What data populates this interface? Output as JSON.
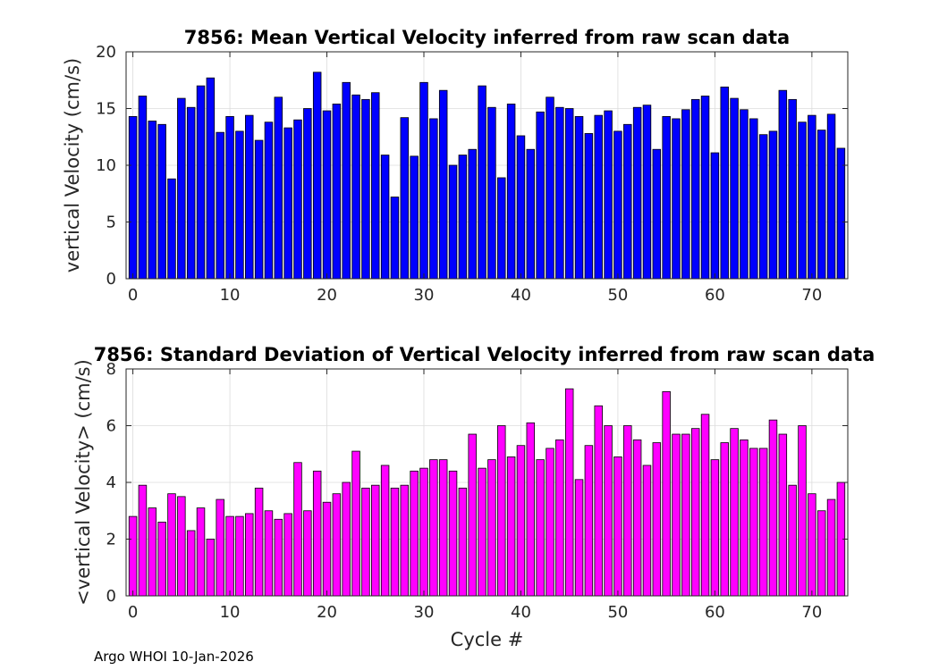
{
  "chart_data": [
    {
      "type": "bar",
      "title": "7856: Mean Vertical Velocity inferred from raw scan data",
      "xlabel": "",
      "ylabel": "vertical Velocity (cm/s)",
      "xlim": [
        -0.7,
        73.7
      ],
      "ylim": [
        0,
        20
      ],
      "xticks": [
        0,
        10,
        20,
        30,
        40,
        50,
        60,
        70
      ],
      "yticks": [
        0,
        5,
        10,
        15,
        20
      ],
      "grid": true,
      "color": "#0000FF",
      "x": [
        0,
        1,
        2,
        3,
        4,
        5,
        6,
        7,
        8,
        9,
        10,
        11,
        12,
        13,
        14,
        15,
        16,
        17,
        18,
        19,
        20,
        21,
        22,
        23,
        24,
        25,
        26,
        27,
        28,
        29,
        30,
        31,
        32,
        33,
        34,
        35,
        36,
        37,
        38,
        39,
        40,
        41,
        42,
        43,
        44,
        45,
        46,
        47,
        48,
        49,
        50,
        51,
        52,
        53,
        54,
        55,
        56,
        57,
        58,
        59,
        60,
        61,
        62,
        63,
        64,
        65,
        66,
        67,
        68,
        69,
        70,
        71,
        72,
        73
      ],
      "values": [
        14.3,
        16.1,
        13.9,
        13.6,
        8.8,
        15.9,
        15.1,
        17.0,
        17.7,
        12.9,
        14.3,
        13.0,
        14.4,
        12.2,
        13.8,
        16.0,
        13.3,
        14.0,
        15.0,
        18.2,
        14.8,
        15.4,
        17.3,
        16.2,
        15.8,
        16.4,
        10.9,
        7.2,
        14.2,
        10.8,
        17.3,
        14.1,
        16.6,
        10.0,
        10.9,
        11.4,
        17.0,
        15.1,
        8.9,
        15.4,
        12.6,
        11.4,
        14.7,
        16.0,
        15.1,
        15.0,
        14.3,
        12.8,
        14.4,
        14.8,
        13.0,
        13.6,
        15.1,
        15.3,
        11.4,
        14.3,
        14.1,
        14.9,
        15.8,
        16.1,
        11.1,
        16.9,
        15.9,
        14.9,
        14.1,
        12.7,
        13.0,
        16.6,
        15.8,
        13.8,
        14.4,
        13.1,
        14.5,
        11.5
      ]
    },
    {
      "type": "bar",
      "title": "7856: Standard Deviation of Vertical Velocity inferred from raw scan data",
      "xlabel": "Cycle #",
      "ylabel": "<vertical Velocity> (cm/s)",
      "xlim": [
        -0.7,
        73.7
      ],
      "ylim": [
        0,
        8
      ],
      "xticks": [
        0,
        10,
        20,
        30,
        40,
        50,
        60,
        70
      ],
      "yticks": [
        0,
        2,
        4,
        6,
        8
      ],
      "grid": true,
      "color": "#FF00FF",
      "x": [
        0,
        1,
        2,
        3,
        4,
        5,
        6,
        7,
        8,
        9,
        10,
        11,
        12,
        13,
        14,
        15,
        16,
        17,
        18,
        19,
        20,
        21,
        22,
        23,
        24,
        25,
        26,
        27,
        28,
        29,
        30,
        31,
        32,
        33,
        34,
        35,
        36,
        37,
        38,
        39,
        40,
        41,
        42,
        43,
        44,
        45,
        46,
        47,
        48,
        49,
        50,
        51,
        52,
        53,
        54,
        55,
        56,
        57,
        58,
        59,
        60,
        61,
        62,
        63,
        64,
        65,
        66,
        67,
        68,
        69,
        70,
        71,
        72,
        73
      ],
      "values": [
        2.8,
        3.9,
        3.1,
        2.6,
        3.6,
        3.5,
        2.3,
        3.1,
        2.0,
        3.4,
        2.8,
        2.8,
        2.9,
        3.8,
        3.0,
        2.7,
        2.9,
        4.7,
        3.0,
        4.4,
        3.3,
        3.6,
        4.0,
        5.1,
        3.8,
        3.9,
        4.6,
        3.8,
        3.9,
        4.4,
        4.5,
        4.8,
        4.8,
        4.4,
        3.8,
        5.7,
        4.5,
        4.8,
        6.0,
        4.9,
        5.3,
        6.1,
        4.8,
        5.2,
        5.5,
        7.3,
        4.1,
        5.3,
        6.7,
        6.0,
        4.9,
        6.0,
        5.5,
        4.6,
        5.4,
        7.2,
        5.7,
        5.7,
        5.9,
        6.4,
        4.8,
        5.4,
        5.9,
        5.5,
        5.2,
        5.2,
        6.2,
        5.7,
        3.9,
        6.0,
        3.6,
        3.0,
        3.4,
        4.0
      ]
    }
  ],
  "footer": "Argo WHOI 10-Jan-2026"
}
